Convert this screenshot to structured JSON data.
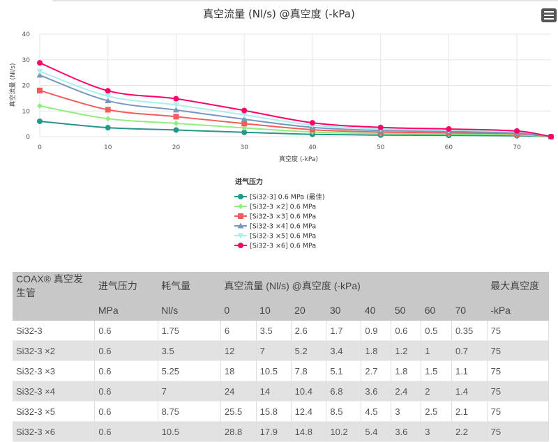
{
  "chart_data": {
    "type": "line",
    "title": "真空流量 (Nl/s) @真空度 (-kPa)",
    "xlabel": "真空度 (-kPa)",
    "ylabel": "真空流量 (Nl/s)",
    "xlim": [
      0,
      75
    ],
    "ylim": [
      0,
      40
    ],
    "xticks": [
      0,
      10,
      20,
      30,
      40,
      50,
      60,
      70
    ],
    "yticks": [
      0,
      10,
      20,
      30,
      40
    ],
    "grid": true,
    "legend": {
      "title": "进气压力",
      "placement": "bottom"
    },
    "x": [
      0,
      10,
      20,
      30,
      40,
      50,
      60,
      70,
      75
    ],
    "series": [
      {
        "name": "[Si32-3] 0.6 MPa (最佳)",
        "color": "#26958a",
        "marker": "circle",
        "values": [
          6,
          3.5,
          2.6,
          1.7,
          0.9,
          0.6,
          0.5,
          0.35,
          0
        ]
      },
      {
        "name": "[Si32-3 ×2] 0.6 MPa",
        "color": "#90ee7e",
        "marker": "diamond",
        "values": [
          12,
          7,
          5.2,
          3.4,
          1.8,
          1.2,
          1,
          0.7,
          0
        ]
      },
      {
        "name": "[Si32-3 ×3] 0.6 MPa",
        "color": "#f45b5b",
        "marker": "square",
        "values": [
          18,
          10.5,
          7.8,
          5.1,
          2.7,
          1.8,
          1.5,
          1.1,
          0
        ]
      },
      {
        "name": "[Si32-3 ×4] 0.6 MPa",
        "color": "#7798bf",
        "marker": "triangle",
        "values": [
          24,
          14,
          10.4,
          6.8,
          3.6,
          2.4,
          2,
          1.4,
          0
        ]
      },
      {
        "name": "[Si32-3 ×5] 0.6 MPa",
        "color": "#aaeeee",
        "marker": "triangle-down",
        "values": [
          25.5,
          15.8,
          12.4,
          8.5,
          4.5,
          3,
          2.5,
          2.1,
          0
        ]
      },
      {
        "name": "[Si32-3 ×6] 0.6 MPa",
        "color": "#ff0066",
        "marker": "circle",
        "values": [
          28.8,
          17.9,
          14.8,
          10.2,
          5.4,
          3.6,
          3,
          2.2,
          0
        ]
      }
    ]
  },
  "menu_icon": "hamburger-icon",
  "table": {
    "header1": [
      "COAX® 真空发生管",
      "进气压力",
      "耗气量",
      "真空流量 (Nl/s) @真空度 (-kPa)",
      "最大真空度"
    ],
    "header2": [
      "",
      "MPa",
      "Nl/s",
      "0",
      "10",
      "20",
      "30",
      "40",
      "50",
      "60",
      "70",
      "-kPa"
    ],
    "rows": [
      [
        "Si32-3",
        "0.6",
        "1.75",
        "6",
        "3.5",
        "2.6",
        "1.7",
        "0.9",
        "0.6",
        "0.5",
        "0.35",
        "75"
      ],
      [
        "Si32-3 ×2",
        "0.6",
        "3.5",
        "12",
        "7",
        "5.2",
        "3.4",
        "1.8",
        "1.2",
        "1",
        "0.7",
        "75"
      ],
      [
        "Si32-3 ×3",
        "0.6",
        "5.25",
        "18",
        "10.5",
        "7.8",
        "5.1",
        "2.7",
        "1.8",
        "1.5",
        "1.1",
        "75"
      ],
      [
        "Si32-3 ×4",
        "0.6",
        "7",
        "24",
        "14",
        "10.4",
        "6.8",
        "3.6",
        "2.4",
        "2",
        "1.4",
        "75"
      ],
      [
        "Si32-3 ×5",
        "0.6",
        "8.75",
        "25.5",
        "15.8",
        "12.4",
        "8.5",
        "4.5",
        "3",
        "2.5",
        "2.1",
        "75"
      ],
      [
        "Si32-3 ×6",
        "0.6",
        "10.5",
        "28.8",
        "17.9",
        "14.8",
        "10.2",
        "5.4",
        "3.6",
        "3",
        "2.2",
        "75"
      ]
    ]
  }
}
